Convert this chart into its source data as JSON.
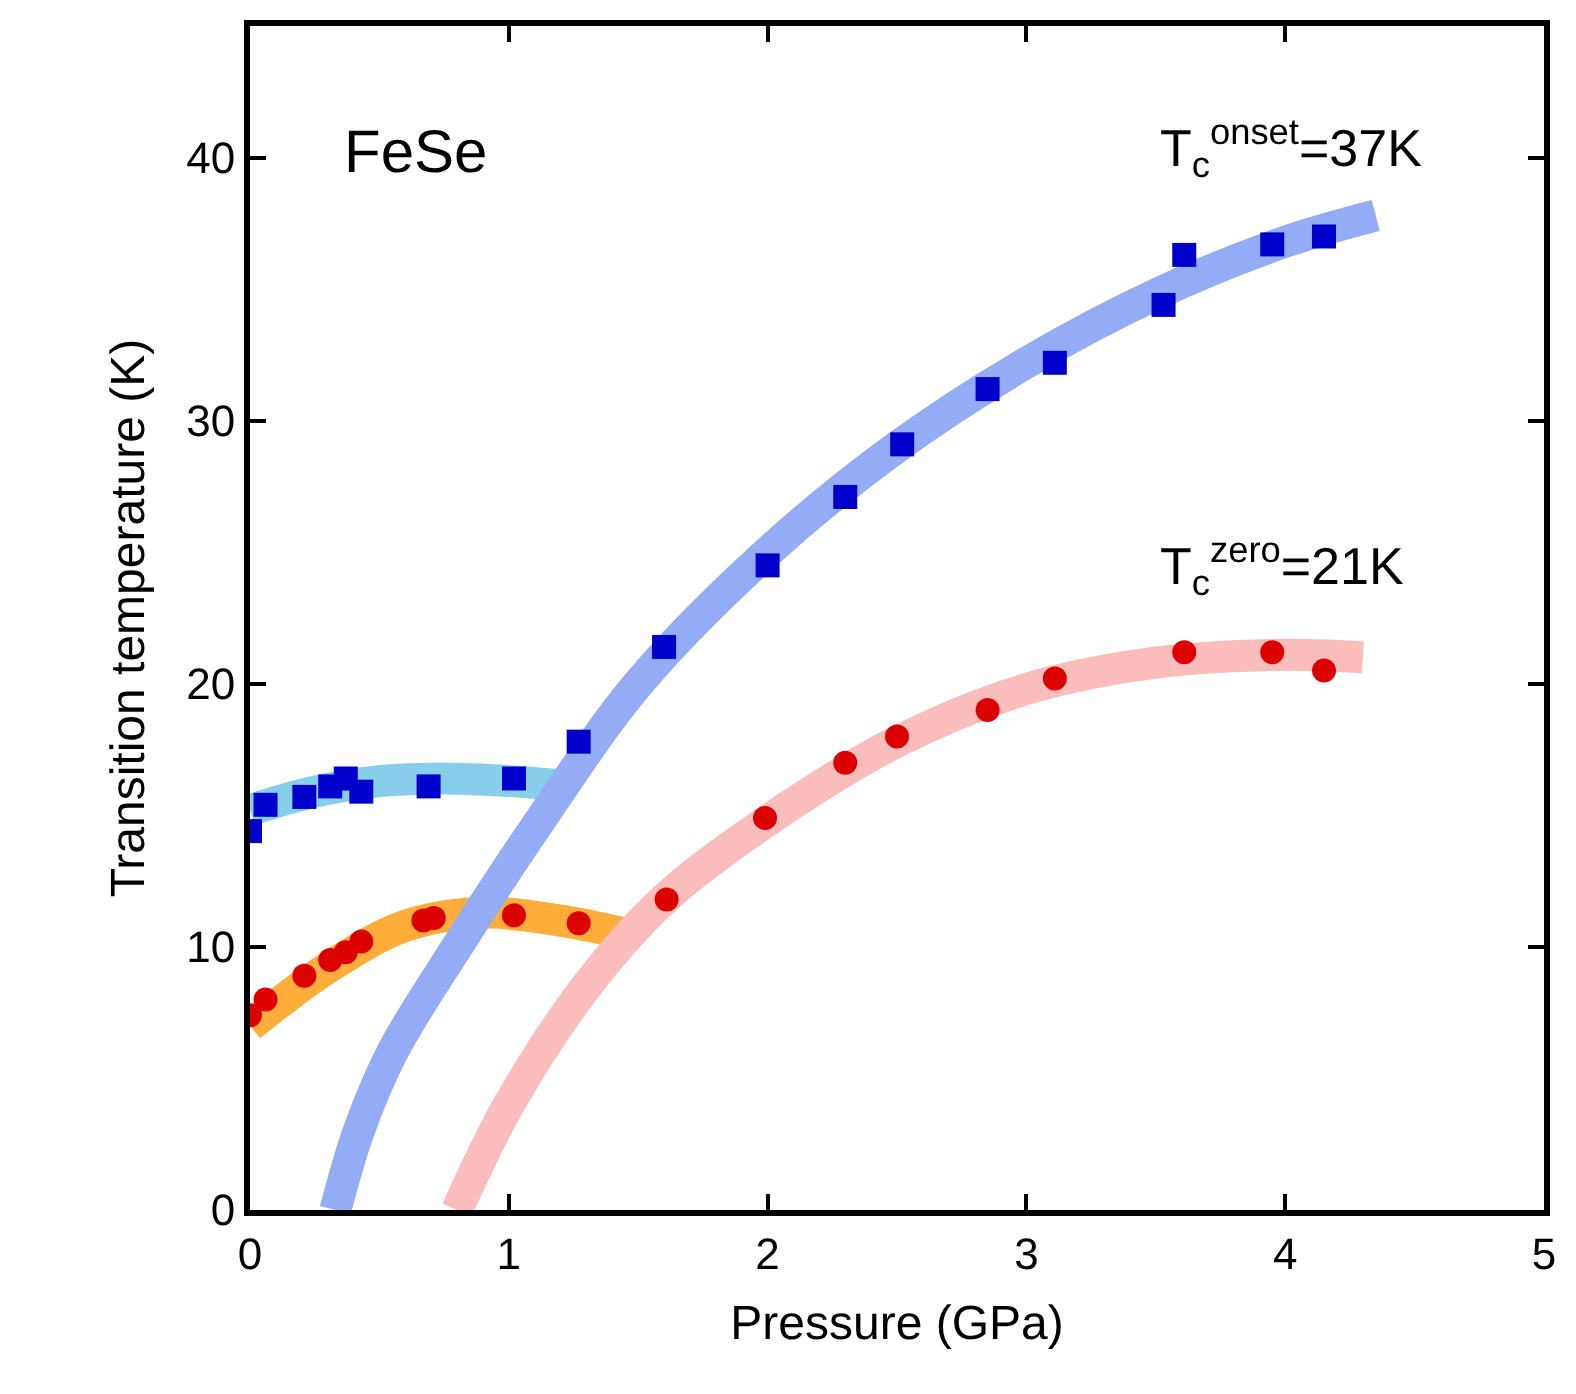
{
  "chart_data": {
    "type": "scatter",
    "xlabel": "Pressure (GPa)",
    "ylabel": "Transition temperature (K)",
    "annotations": [
      "FeSe",
      "T$_{c}$$^{onset}$=37K",
      "T$_{c}$$^{zero}$=21K"
    ],
    "xlim": [
      0,
      5
    ],
    "xticks": [
      0,
      1,
      2,
      3,
      4,
      5
    ],
    "ylim": [
      0,
      45
    ],
    "yticks": [
      0,
      10,
      20,
      30,
      40
    ],
    "series": [
      {
        "type": "line",
        "color": "#87ceeb",
        "marker": "none",
        "x": [
          0,
          0.25,
          0.5,
          0.75,
          1.0,
          1.25
        ],
        "values": [
          15.2,
          15.9,
          16.3,
          16.4,
          16.3,
          16.1
        ]
      },
      {
        "type": "line",
        "color": "#ffad3a",
        "marker": "none",
        "x": [
          0,
          0.3,
          0.6,
          0.9,
          1.2,
          1.45
        ],
        "values": [
          7.0,
          9.2,
          10.8,
          11.3,
          11.0,
          10.5
        ]
      },
      {
        "type": "line",
        "color": "#94abf5",
        "marker": "none",
        "x": [
          0.33,
          0.42,
          0.55,
          0.8,
          1.1,
          1.5,
          2.0,
          2.5,
          3.0,
          3.5,
          4.0,
          4.35
        ],
        "values": [
          0,
          3,
          6,
          10,
          14.5,
          20,
          25,
          29,
          32.2,
          34.8,
          36.8,
          37.8
        ]
      },
      {
        "type": "line",
        "color": "#fbbcbc",
        "marker": "none",
        "x": [
          0.8,
          1.0,
          1.3,
          1.6,
          2.0,
          2.5,
          3.0,
          3.5,
          4.0,
          4.3
        ],
        "values": [
          0,
          4,
          8.5,
          11.8,
          14.8,
          17.8,
          19.8,
          20.8,
          21.1,
          21.0
        ]
      },
      {
        "color": "#0000cc",
        "marker": "square",
        "x": [
          0,
          0.06,
          0.21,
          0.31,
          0.37,
          0.43,
          0.69,
          1.02,
          1.27,
          1.6,
          2.0,
          2.3,
          2.52,
          2.85,
          3.11,
          3.53,
          3.61,
          3.95,
          4.15
        ],
        "values": [
          14.4,
          15.4,
          15.7,
          16.1,
          16.4,
          15.9,
          16.1,
          16.4,
          17.8,
          21.4,
          24.5,
          27.1,
          29.1,
          31.2,
          32.2,
          34.4,
          36.3,
          36.7,
          37.0
        ]
      },
      {
        "color": "#dd0000",
        "marker": "circle",
        "x": [
          0,
          0.06,
          0.21,
          0.31,
          0.37,
          0.43,
          0.67,
          0.71,
          1.02,
          1.27,
          1.61,
          1.99,
          2.3,
          2.5,
          2.85,
          3.11,
          3.61,
          3.95,
          4.15
        ],
        "values": [
          7.4,
          8.0,
          8.9,
          9.5,
          9.8,
          10.2,
          11.0,
          11.1,
          11.2,
          10.9,
          11.8,
          14.9,
          17.0,
          18.0,
          19.0,
          20.2,
          21.2,
          21.2,
          20.5
        ]
      }
    ]
  }
}
